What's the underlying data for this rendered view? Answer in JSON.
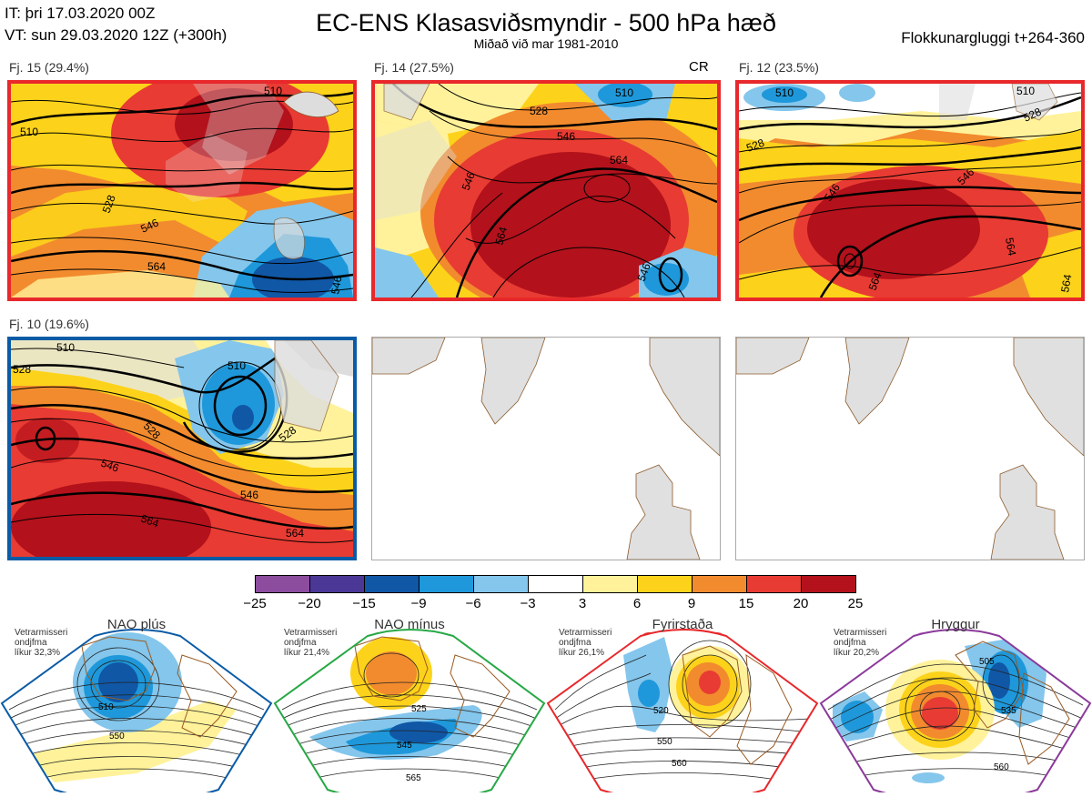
{
  "header": {
    "init_line": "IT: þri 17.03.2020 00Z",
    "valid_line": "VT: sun 29.03.2020 12Z  (+300h)",
    "title": "EC-ENS Klasasviðsmyndir - 500 hPa hæð",
    "subtitle": "Miðað við mar 1981-2010",
    "window_label": "Flokkunargluggi t+264-360"
  },
  "panels": [
    {
      "label": "Fj. 15 (29.4%)",
      "border_color": "#e8282b",
      "contours": [
        "510",
        "528",
        "546",
        "564",
        "510",
        "546"
      ]
    },
    {
      "label": "Fj. 14 (27.5%)",
      "tag": "CR",
      "border_color": "#e8282b",
      "contours": [
        "528",
        "510",
        "546",
        "564",
        "546",
        "564",
        "546"
      ]
    },
    {
      "label": "Fj. 12 (23.5%)",
      "border_color": "#e8282b",
      "contours": [
        "510",
        "510",
        "528",
        "528",
        "546",
        "546",
        "564",
        "564",
        "564"
      ]
    },
    {
      "label": "Fj. 10 (19.6%)",
      "border_color": "#0a5ba6",
      "contours": [
        "510",
        "510",
        "528",
        "528",
        "546",
        "546",
        "564",
        "564",
        "528"
      ]
    },
    {
      "label": "",
      "border_color": "#aaaaaa",
      "contours": []
    },
    {
      "label": "",
      "border_color": "#aaaaaa",
      "contours": []
    }
  ],
  "colorbar": {
    "colors": [
      "#8c4d9e",
      "#4b3796",
      "#1057a6",
      "#1e98da",
      "#84c6ec",
      "#ffffff",
      "#fff29a",
      "#fcd31a",
      "#f28b2e",
      "#e83b33",
      "#b3111b"
    ],
    "ticks": [
      "−25",
      "−20",
      "−15",
      "−9",
      "−6",
      "−3",
      "3",
      "6",
      "9",
      "15",
      "20",
      "25"
    ]
  },
  "regimes": [
    {
      "name": "NAO plús",
      "note_lines": [
        "Vetrarmisseri",
        "ondjfma",
        "líkur 32,3%"
      ],
      "color": "#0a5ba6",
      "contours": [
        "510",
        "550"
      ]
    },
    {
      "name": "NAO mínus",
      "note_lines": [
        "Vetrarmisseri",
        "ondjfma",
        "líkur 21,4%"
      ],
      "color": "#27a845",
      "contours": [
        "525",
        "545",
        "565"
      ]
    },
    {
      "name": "Fyrirstaða",
      "note_lines": [
        "Vetrarmisseri",
        "ondjfma",
        "líkur 26,1%"
      ],
      "color": "#e8282b",
      "contours": [
        "520",
        "550",
        "560"
      ]
    },
    {
      "name": "Hryggur",
      "note_lines": [
        "Vetrarmisseri",
        "ondjfma",
        "líkur 20,2%"
      ],
      "color": "#d966e8",
      "contours": [
        "505",
        "535",
        "560"
      ]
    }
  ]
}
